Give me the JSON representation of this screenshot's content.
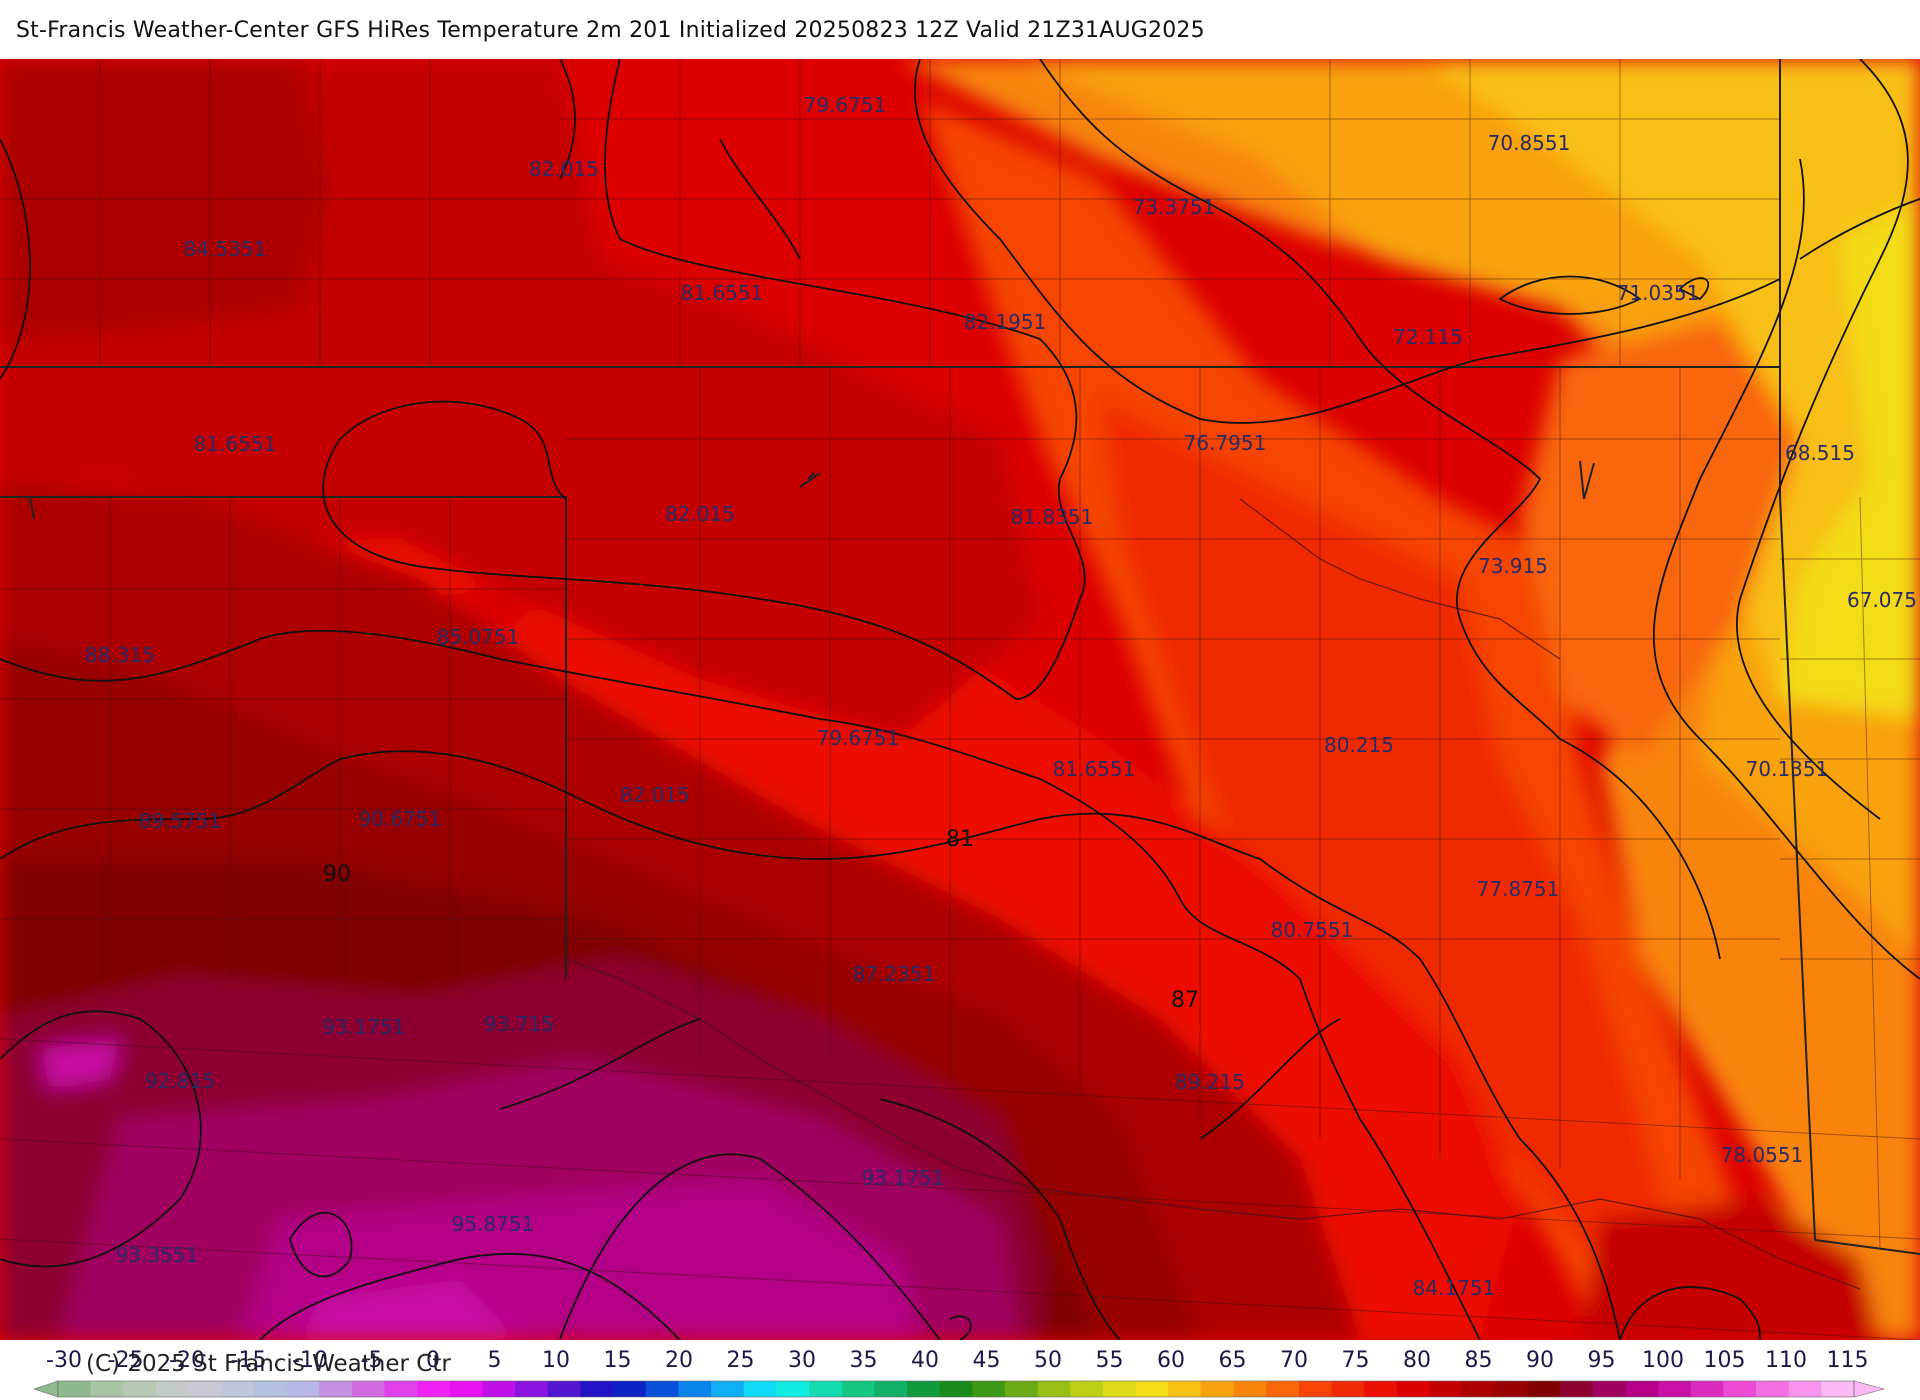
{
  "title": "St-Francis Weather-Center GFS HiRes Temperature 2m  201 Initialized 20250823 12Z Valid 21Z31AUG2025",
  "copyright": "(C) 2025 St Francis Weather Ctr",
  "value_labels": [
    {
      "id": "v1",
      "text": "79.6751"
    },
    {
      "id": "v2",
      "text": "82.015"
    },
    {
      "id": "v3",
      "text": "84.5351"
    },
    {
      "id": "v4",
      "text": "81.6551"
    },
    {
      "id": "v5",
      "text": "82.1951"
    },
    {
      "id": "v6",
      "text": "73.3751"
    },
    {
      "id": "v7",
      "text": "70.8551"
    },
    {
      "id": "v8",
      "text": "71.0351"
    },
    {
      "id": "v9",
      "text": "72.115"
    },
    {
      "id": "v10",
      "text": "81.6551"
    },
    {
      "id": "v11",
      "text": "82.015"
    },
    {
      "id": "v12",
      "text": "81.8351"
    },
    {
      "id": "v13",
      "text": "76.7951"
    },
    {
      "id": "v14",
      "text": "68.515"
    },
    {
      "id": "v15",
      "text": "73.915"
    },
    {
      "id": "v16",
      "text": "67.075"
    },
    {
      "id": "v17",
      "text": "88.315"
    },
    {
      "id": "v18",
      "text": "85.0751"
    },
    {
      "id": "v19",
      "text": "79.6751"
    },
    {
      "id": "v20",
      "text": "80.215"
    },
    {
      "id": "v21",
      "text": "81.6551"
    },
    {
      "id": "v22",
      "text": "70.1351"
    },
    {
      "id": "v23",
      "text": "89.5751"
    },
    {
      "id": "v24",
      "text": "90.6751"
    },
    {
      "id": "v25",
      "text": "82.015"
    },
    {
      "id": "v26",
      "text": "77.8751"
    },
    {
      "id": "v27",
      "text": "80.7551"
    },
    {
      "id": "v28",
      "text": "87.2351"
    },
    {
      "id": "v29",
      "text": "93.1751"
    },
    {
      "id": "v30",
      "text": "93.715"
    },
    {
      "id": "v31",
      "text": "92.815"
    },
    {
      "id": "v32",
      "text": "89.215"
    },
    {
      "id": "v33",
      "text": "93.1751"
    },
    {
      "id": "v34",
      "text": "78.0551"
    },
    {
      "id": "v35",
      "text": "95.8751"
    },
    {
      "id": "v36",
      "text": "93.3551"
    },
    {
      "id": "v37",
      "text": "84.1751"
    }
  ],
  "contour_labels": [
    {
      "id": "c90",
      "text": "90"
    },
    {
      "id": "c81",
      "text": "81"
    },
    {
      "id": "c87",
      "text": "87"
    }
  ],
  "colorbar": {
    "ticks": [
      "-30",
      "-25",
      "-20",
      "-15",
      "-10",
      "-5",
      "0",
      "5",
      "10",
      "15",
      "20",
      "25",
      "30",
      "35",
      "40",
      "45",
      "50",
      "55",
      "60",
      "65",
      "70",
      "75",
      "80",
      "85",
      "90",
      "95",
      "100",
      "105",
      "110",
      "115"
    ],
    "colors": [
      "#8fb88f",
      "#a9c4a4",
      "#b7c9b5",
      "#c4cac9",
      "#c9c9d6",
      "#bfc6dc",
      "#b4c0e0",
      "#b8b6e4",
      "#c690e2",
      "#d06ae0",
      "#e040ea",
      "#ef22f2",
      "#e812f0",
      "#c010e8",
      "#8a14e0",
      "#5216d2",
      "#2212c6",
      "#0c22c6",
      "#0850d8",
      "#0a84ea",
      "#10aef2",
      "#10dcfa",
      "#10ece0",
      "#14dcb0",
      "#14c884",
      "#12b066",
      "#109a3c",
      "#1a8a1c",
      "#3e9a16",
      "#6aaa14",
      "#96be14",
      "#bcd016",
      "#dedc18",
      "#f2dc16",
      "#f8c012",
      "#f8a210",
      "#f8840e",
      "#f8660a",
      "#f54406",
      "#f02a04",
      "#ec1004",
      "#dc0000",
      "#c40000",
      "#ac0000",
      "#960000",
      "#800000",
      "#8e0030",
      "#a00060",
      "#b40086",
      "#c810a4",
      "#dc2cbe",
      "#ec4cd4",
      "#f470e2",
      "#f894ec",
      "#fcbaf4"
    ]
  }
}
